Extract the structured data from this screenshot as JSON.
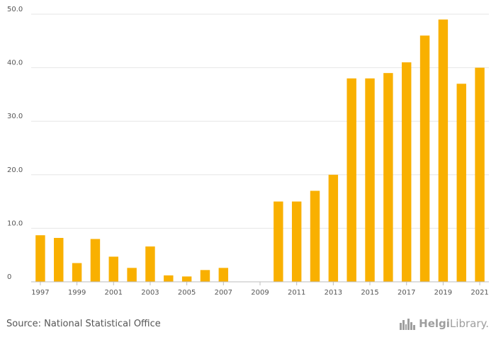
{
  "chart_data": {
    "type": "bar",
    "title": "",
    "xlabel": "",
    "ylabel": "",
    "years": [
      "1997",
      "1998",
      "1999",
      "2000",
      "2001",
      "2002",
      "2003",
      "2004",
      "2005",
      "2006",
      "2007",
      "2008",
      "2009",
      "2010",
      "2011",
      "2012",
      "2013",
      "2014",
      "2015",
      "2016",
      "2017",
      "2018",
      "2019",
      "2020",
      "2021"
    ],
    "values": [
      8.7,
      8.2,
      3.5,
      8.0,
      4.7,
      2.6,
      6.6,
      1.2,
      1.0,
      2.2,
      2.6,
      0,
      0,
      15.0,
      15.0,
      17.0,
      20.0,
      38.0,
      38.0,
      39.0,
      41.0,
      46.0,
      49.0,
      37.0,
      40.0
    ],
    "x_tick_labels": [
      "1997",
      "1999",
      "2001",
      "2003",
      "2005",
      "2007",
      "2009",
      "2011",
      "2013",
      "2015",
      "2017",
      "2019",
      "2021"
    ],
    "y_tick_labels": [
      "0",
      "10.0",
      "20.0",
      "30.0",
      "40.0",
      "50.0"
    ],
    "y_ticks": [
      0,
      10,
      20,
      30,
      40,
      50
    ],
    "ylim": [
      0,
      50
    ],
    "bar_color": "#f9b000",
    "grid": true
  },
  "footer": {
    "source": "Source: National Statistical Office",
    "logo_text_bold": "Helgi",
    "logo_text_rest": "Library.",
    "logo_icon": "city-skyline-icon"
  }
}
